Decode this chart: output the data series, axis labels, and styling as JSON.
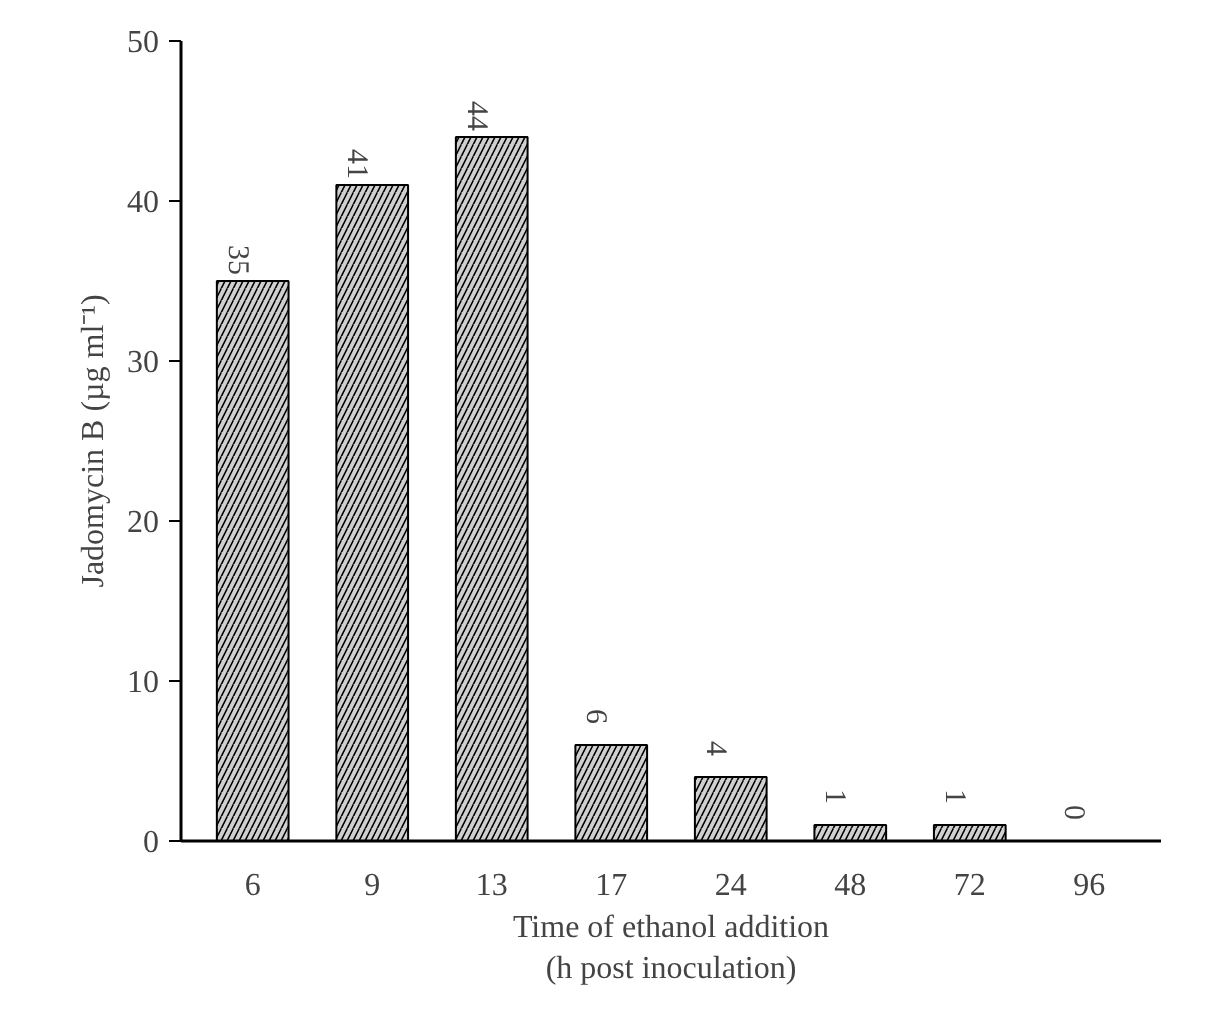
{
  "chart_data": {
    "type": "bar",
    "xlabel": "Time of ethanol addition\n(h post inoculation)",
    "ylabel": "Jadomycin B (µg ml⁻¹)",
    "categories": [
      "6",
      "9",
      "13",
      "17",
      "24",
      "48",
      "72",
      "96"
    ],
    "values": [
      35,
      41,
      44,
      6,
      4,
      1,
      1,
      0
    ],
    "color": "#d0d0d0",
    "ylim": [
      0,
      50
    ],
    "yticks": [
      0,
      10,
      20,
      30,
      40,
      50
    ],
    "data_labels": true,
    "grid": false
  }
}
